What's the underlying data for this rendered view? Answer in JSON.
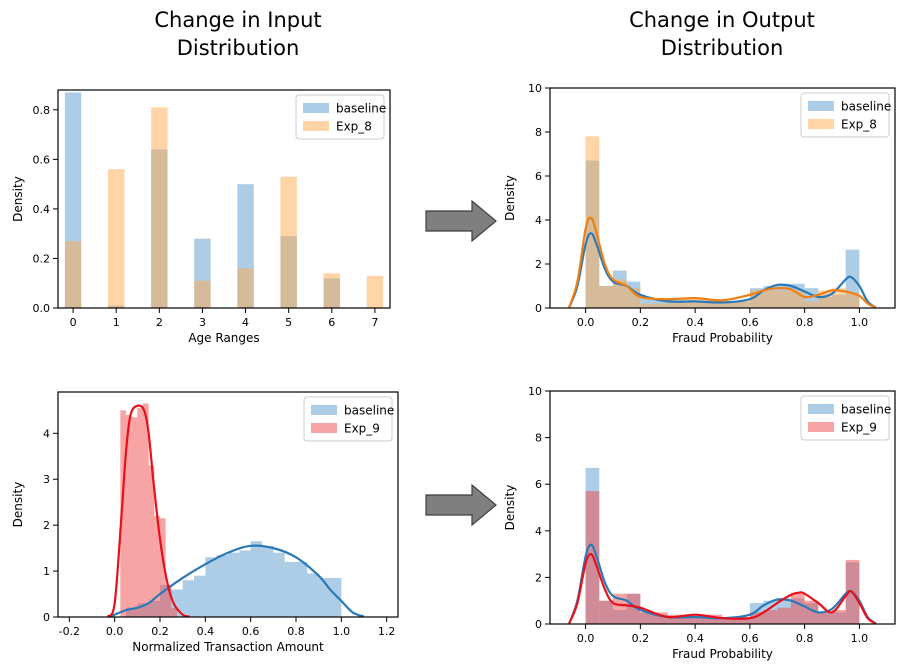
{
  "titles": {
    "left": [
      "Change in Input",
      "Distribution"
    ],
    "right": [
      "Change in Output",
      "Distribution"
    ]
  },
  "colors": {
    "baseline": "#5b9bd0",
    "baseline_line": "#2b79b7",
    "exp_8": "#ffa94d",
    "exp_8_line": "#ee7f12",
    "exp_9": "#f24a4a",
    "exp_9_line": "#e8101a",
    "arrow": "#7f7f7f"
  },
  "chart_data": [
    {
      "id": "age",
      "type": "bar",
      "xlabel": "Age Ranges",
      "ylabel": "Density",
      "xlim": [
        -0.35,
        7.35
      ],
      "ylim": [
        0,
        0.88
      ],
      "xticks": [
        0,
        1,
        2,
        3,
        4,
        5,
        6,
        7
      ],
      "yticks": [
        0.0,
        0.2,
        0.4,
        0.6,
        0.8
      ],
      "bar_width": 0.38,
      "legend": {
        "position": "top-right",
        "entries": [
          "baseline",
          "Exp_8"
        ]
      },
      "series": [
        {
          "name": "baseline",
          "x": [
            0,
            1,
            2,
            3,
            4,
            5,
            6,
            7
          ],
          "values": [
            0.87,
            0.01,
            0.64,
            0.28,
            0.5,
            0.29,
            0.12,
            0
          ]
        },
        {
          "name": "Exp_8",
          "x": [
            0,
            1,
            2,
            3,
            4,
            5,
            6,
            7
          ],
          "values": [
            0.27,
            0.56,
            0.81,
            0.11,
            0.16,
            0.53,
            0.14,
            0.13
          ]
        }
      ]
    },
    {
      "id": "fraud1",
      "type": "histogram+kde",
      "xlabel": "Fraud Probability",
      "ylabel": "Density",
      "xlim": [
        -0.13,
        1.13
      ],
      "ylim": [
        0,
        10
      ],
      "xticks": [
        0.0,
        0.2,
        0.4,
        0.6,
        0.8,
        1.0
      ],
      "yticks": [
        0,
        2,
        4,
        6,
        8,
        10
      ],
      "bin_edges": [
        0,
        0.05,
        0.1,
        0.15,
        0.2,
        0.25,
        0.3,
        0.35,
        0.4,
        0.45,
        0.5,
        0.55,
        0.6,
        0.65,
        0.7,
        0.75,
        0.8,
        0.85,
        0.9,
        0.95,
        1.0
      ],
      "legend": {
        "position": "top-right",
        "entries": [
          "baseline",
          "Exp_8"
        ]
      },
      "series": [
        {
          "name": "baseline",
          "values": [
            6.7,
            1.0,
            1.7,
            1.2,
            0.5,
            0.4,
            0.4,
            0.3,
            0.3,
            0.3,
            0.3,
            0.3,
            0.9,
            1.0,
            1.1,
            1.1,
            0.9,
            0.5,
            0.6,
            2.65
          ],
          "kde": {
            "x": [
              -0.06,
              -0.03,
              0,
              0.02,
              0.04,
              0.07,
              0.1,
              0.15,
              0.2,
              0.3,
              0.4,
              0.5,
              0.6,
              0.65,
              0.7,
              0.75,
              0.8,
              0.85,
              0.9,
              0.95,
              0.97,
              1.0,
              1.03,
              1.06
            ],
            "y": [
              0.02,
              1.0,
              2.9,
              3.4,
              2.9,
              1.8,
              1.2,
              1.0,
              0.6,
              0.3,
              0.3,
              0.25,
              0.4,
              0.8,
              1.05,
              1.0,
              0.75,
              0.5,
              0.65,
              1.3,
              1.4,
              1.0,
              0.3,
              0.02
            ]
          }
        },
        {
          "name": "Exp_8",
          "values": [
            7.8,
            1.0,
            1.3,
            0.9,
            0.2,
            0.2,
            0.3,
            0.4,
            0.4,
            0.4,
            0.3,
            0.3,
            0.8,
            0.8,
            0.8,
            0.8,
            0.3,
            0.8,
            0.9,
            0.7
          ],
          "kde": {
            "x": [
              -0.06,
              -0.03,
              0,
              0.02,
              0.04,
              0.07,
              0.1,
              0.15,
              0.2,
              0.3,
              0.4,
              0.5,
              0.6,
              0.65,
              0.7,
              0.75,
              0.8,
              0.85,
              0.9,
              0.95,
              1.0,
              1.03,
              1.06
            ],
            "y": [
              0.02,
              1.2,
              3.6,
              4.1,
              3.4,
              2.0,
              1.3,
              1.0,
              0.5,
              0.4,
              0.45,
              0.35,
              0.6,
              0.8,
              0.9,
              0.85,
              0.5,
              0.6,
              0.8,
              0.75,
              0.55,
              0.2,
              0.02
            ]
          }
        }
      ]
    },
    {
      "id": "amount",
      "type": "histogram+kde",
      "xlabel": "Normalized Transaction Amount",
      "ylabel": "Density",
      "xlim": [
        -0.25,
        1.25
      ],
      "ylim": [
        0,
        4.9
      ],
      "xticks": [
        -0.2,
        0.0,
        0.2,
        0.4,
        0.6,
        0.8,
        1.0,
        1.2
      ],
      "yticks": [
        0,
        1,
        2,
        3,
        4
      ],
      "legend": {
        "position": "top-right",
        "entries": [
          "baseline",
          "Exp_9"
        ]
      },
      "series": [
        {
          "name": "baseline",
          "bin_edges": [
            0.05,
            0.1,
            0.15,
            0.2,
            0.25,
            0.3,
            0.35,
            0.4,
            0.45,
            0.5,
            0.55,
            0.6,
            0.65,
            0.7,
            0.75,
            0.8,
            0.85,
            0.9,
            0.95,
            1.0
          ],
          "values": [
            0.2,
            0.3,
            0.35,
            0.7,
            0.6,
            0.8,
            0.9,
            1.3,
            1.35,
            1.4,
            1.45,
            1.65,
            1.55,
            1.4,
            1.2,
            1.2,
            0.95,
            0.85,
            0.85
          ],
          "kde": {
            "x": [
              -0.02,
              0.05,
              0.1,
              0.15,
              0.2,
              0.3,
              0.4,
              0.5,
              0.6,
              0.7,
              0.8,
              0.9,
              0.95,
              1.0,
              1.05,
              1.1
            ],
            "y": [
              0.01,
              0.15,
              0.2,
              0.3,
              0.5,
              0.85,
              1.15,
              1.4,
              1.55,
              1.5,
              1.3,
              0.9,
              0.6,
              0.35,
              0.1,
              0.01
            ]
          }
        },
        {
          "name": "Exp_9",
          "bin_edges": [
            0.025,
            0.05,
            0.075,
            0.1,
            0.125,
            0.15,
            0.175,
            0.2,
            0.225,
            0.25,
            0.275
          ],
          "values": [
            4.5,
            4.4,
            4.35,
            4.55,
            4.65,
            3.3,
            2.2,
            2.15,
            0.7,
            0.2
          ],
          "kde": {
            "x": [
              -0.03,
              0.0,
              0.03,
              0.05,
              0.07,
              0.1,
              0.13,
              0.15,
              0.17,
              0.2,
              0.23,
              0.26,
              0.3,
              0.33
            ],
            "y": [
              0.01,
              0.3,
              2.2,
              3.6,
              4.4,
              4.6,
              4.5,
              4.0,
              3.0,
              1.7,
              0.8,
              0.3,
              0.05,
              0.01
            ]
          }
        }
      ]
    },
    {
      "id": "fraud2",
      "type": "histogram+kde",
      "xlabel": "Fraud Probability",
      "ylabel": "Density",
      "xlim": [
        -0.13,
        1.13
      ],
      "ylim": [
        0,
        10
      ],
      "xticks": [
        0.0,
        0.2,
        0.4,
        0.6,
        0.8,
        1.0
      ],
      "yticks": [
        0,
        2,
        4,
        6,
        8,
        10
      ],
      "bin_edges": [
        0,
        0.05,
        0.1,
        0.15,
        0.2,
        0.25,
        0.3,
        0.35,
        0.4,
        0.45,
        0.5,
        0.55,
        0.6,
        0.65,
        0.7,
        0.75,
        0.8,
        0.85,
        0.9,
        0.95,
        1.0
      ],
      "legend": {
        "position": "top-right",
        "entries": [
          "baseline",
          "Exp_9"
        ]
      },
      "series": [
        {
          "name": "baseline",
          "values": [
            6.7,
            1.0,
            0.6,
            1.3,
            0.5,
            0.4,
            0.3,
            0.3,
            0.3,
            0.3,
            0.3,
            0.3,
            0.9,
            1.0,
            1.1,
            1.1,
            0.9,
            0.5,
            0.5,
            2.65
          ],
          "kde": {
            "x": [
              -0.06,
              -0.03,
              0,
              0.02,
              0.04,
              0.07,
              0.1,
              0.15,
              0.2,
              0.3,
              0.4,
              0.5,
              0.6,
              0.65,
              0.7,
              0.75,
              0.8,
              0.85,
              0.9,
              0.95,
              0.97,
              1.0,
              1.03,
              1.06
            ],
            "y": [
              0.02,
              1.0,
              2.9,
              3.4,
              2.9,
              1.8,
              1.2,
              1.0,
              0.6,
              0.3,
              0.3,
              0.25,
              0.4,
              0.8,
              1.05,
              1.0,
              0.75,
              0.5,
              0.65,
              1.3,
              1.4,
              1.0,
              0.3,
              0.02
            ]
          }
        },
        {
          "name": "Exp_9",
          "values": [
            5.7,
            1.0,
            1.3,
            1.3,
            0.5,
            0.5,
            0.4,
            0.3,
            0.4,
            0.4,
            0.3,
            0.3,
            0.5,
            0.6,
            0.7,
            1.35,
            1.0,
            0.5,
            0.6,
            2.75
          ],
          "kde": {
            "x": [
              -0.06,
              -0.03,
              0,
              0.02,
              0.04,
              0.07,
              0.1,
              0.15,
              0.2,
              0.3,
              0.4,
              0.5,
              0.6,
              0.65,
              0.7,
              0.75,
              0.78,
              0.8,
              0.85,
              0.9,
              0.95,
              0.97,
              1.0,
              1.03,
              1.06
            ],
            "y": [
              0.02,
              0.9,
              2.6,
              3.0,
              2.5,
              1.5,
              0.9,
              0.8,
              0.7,
              0.3,
              0.4,
              0.25,
              0.25,
              0.5,
              0.9,
              1.25,
              1.35,
              1.3,
              0.9,
              0.5,
              1.2,
              1.4,
              0.9,
              0.25,
              0.02
            ]
          }
        }
      ]
    }
  ]
}
